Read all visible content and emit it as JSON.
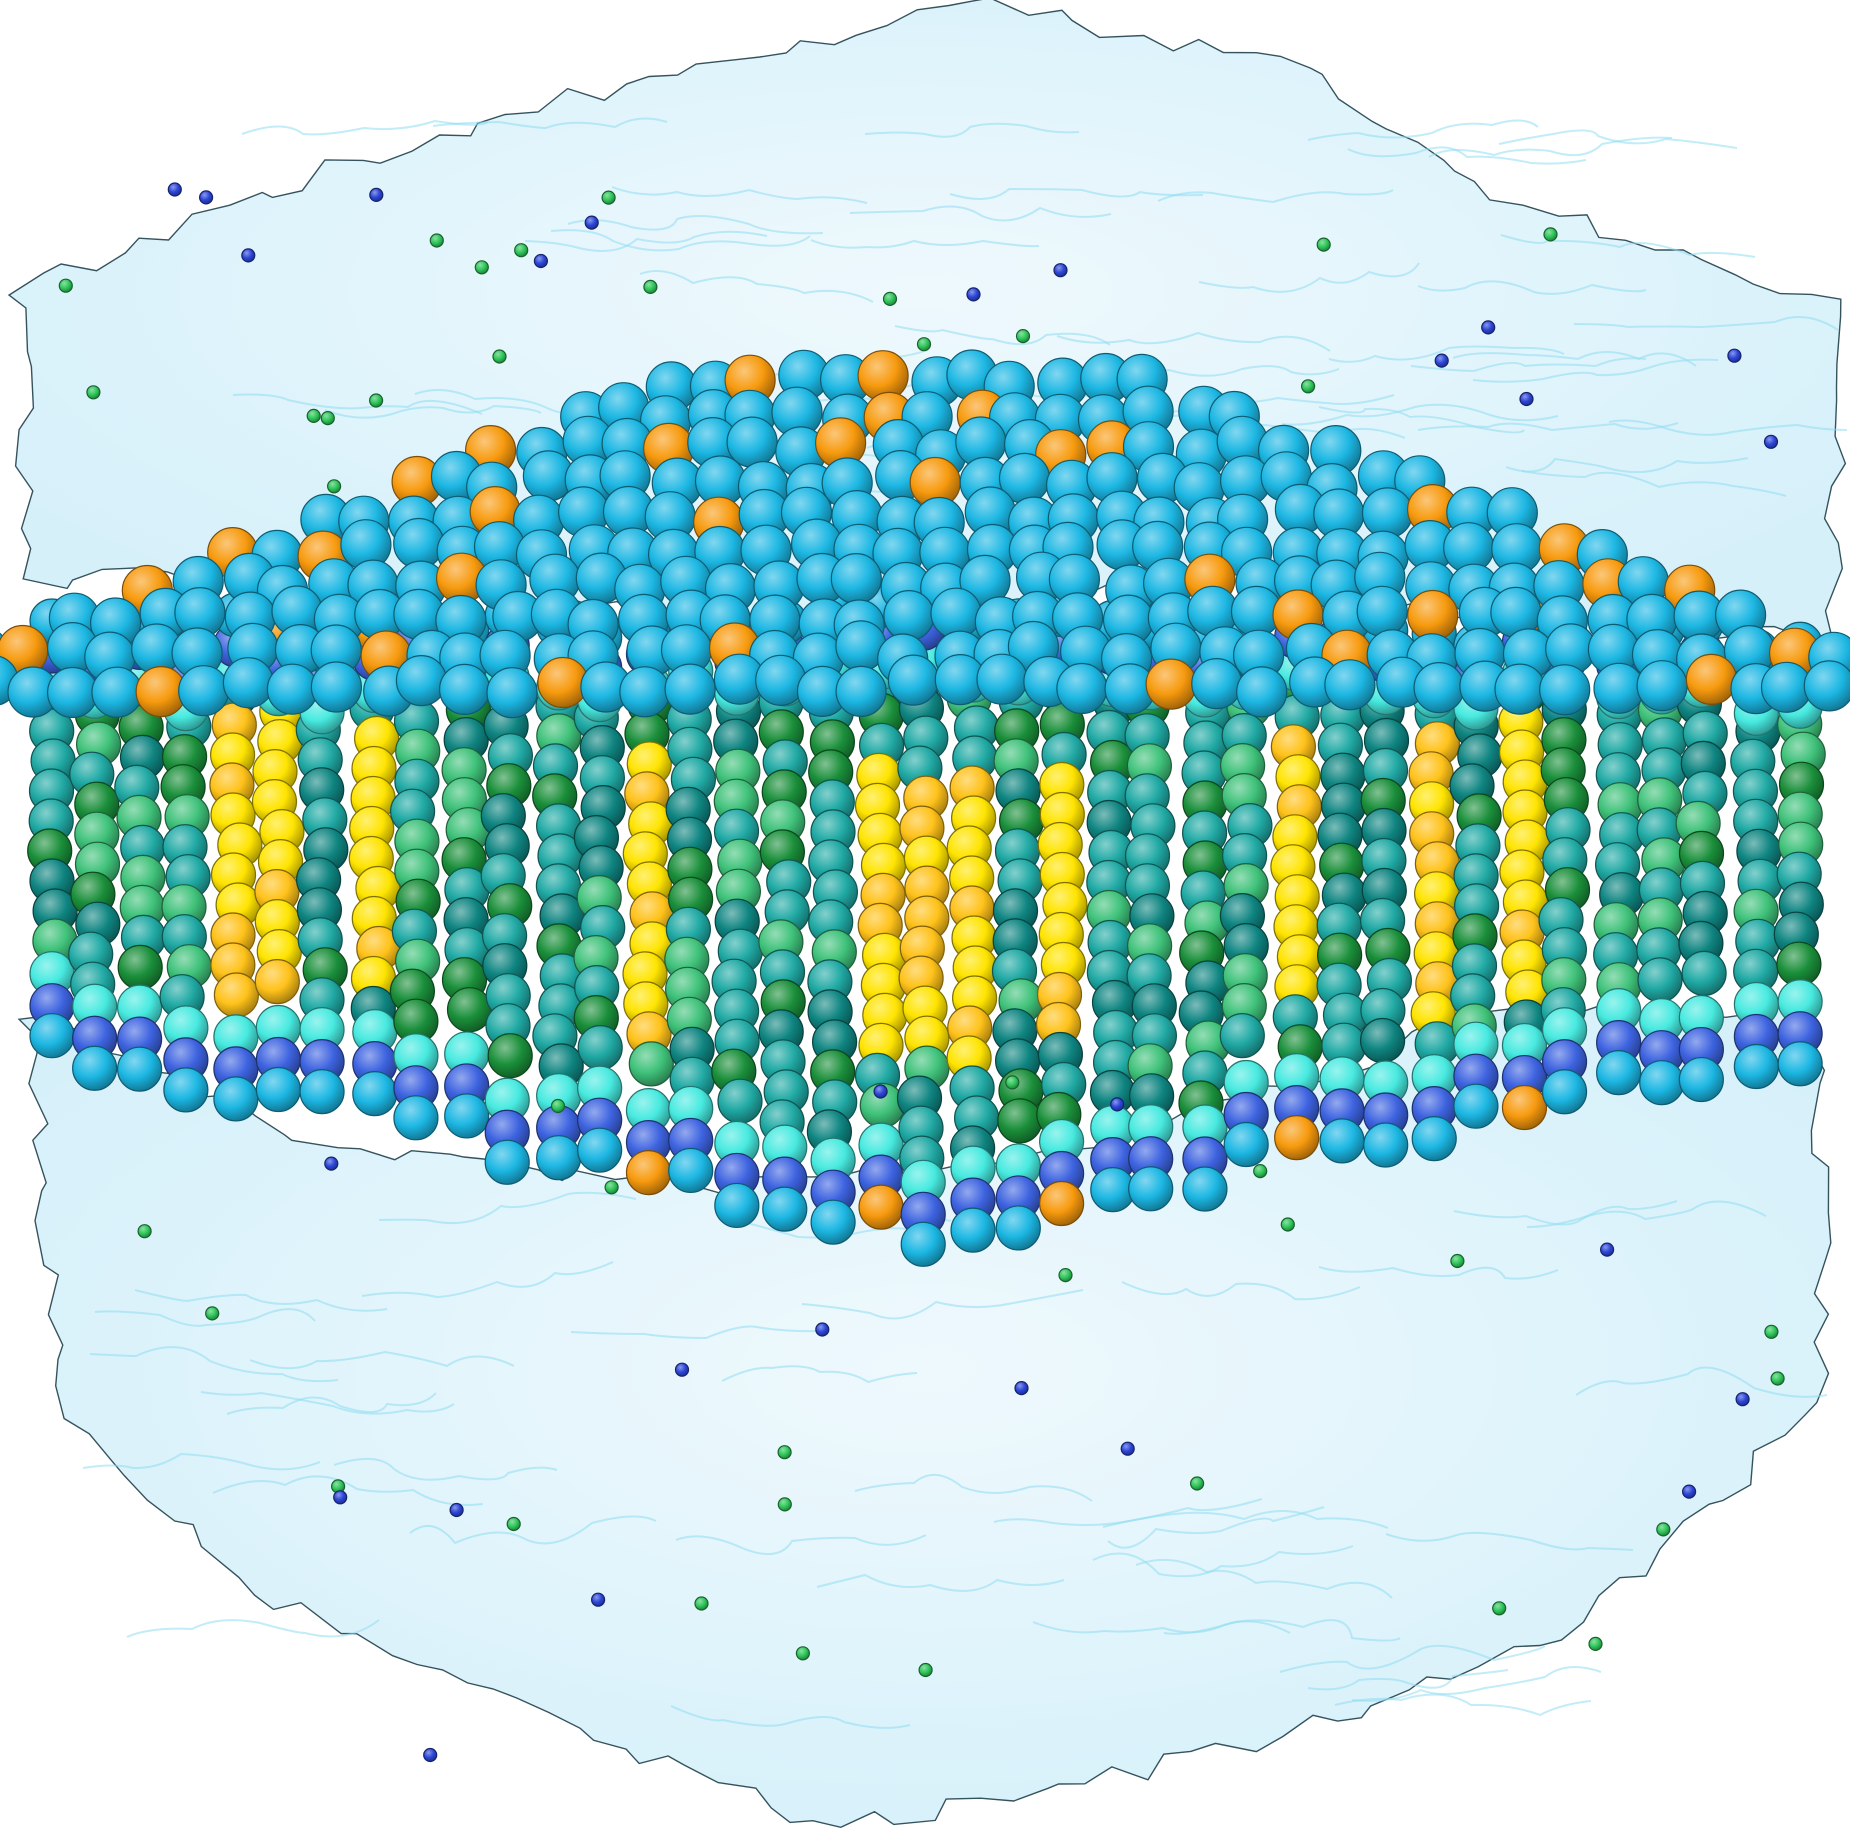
{
  "scene": {
    "subject": "lipid-bilayer-in-water-box",
    "palette": {
      "water_fill": "#e2f5fc",
      "water_edge": "#8fdcf2",
      "water_outline": "#2a4a55",
      "headgroup_choline": "#1cb7e3",
      "phosphate": "#3d63e0",
      "glycerol": "#47eae0",
      "tail_teal": "#20a9a4",
      "tail_dark_teal": "#0f8581",
      "tail_green": "#3fc27a",
      "tail_dark_green": "#1a8f3a",
      "cholesterol_yellow": "#ffe400",
      "cholesterol_gold": "#ffc21a",
      "cholesterol_orange": "#f79a0e",
      "ion_blue": "#2c46d8",
      "ion_green": "#2fc65a"
    },
    "legend_icons": [
      "water-surface-icon",
      "lipid-headgroup-icon",
      "cholesterol-icon",
      "ion-icon"
    ]
  }
}
